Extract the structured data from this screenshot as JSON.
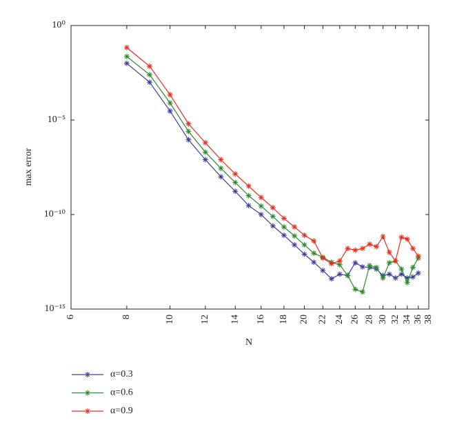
{
  "chart_data": {
    "type": "line",
    "xlabel": "N",
    "ylabel": "max error",
    "xscale": "log",
    "yscale": "log",
    "xlim": [
      6,
      38
    ],
    "xticks": [
      6,
      8,
      10,
      12,
      14,
      16,
      18,
      20,
      22,
      24,
      26,
      28,
      30,
      32,
      34,
      36,
      38
    ],
    "ylim": [
      1e-15,
      1
    ],
    "yticks": [
      {
        "value": 1e-15,
        "label": "10⁻¹⁵"
      },
      {
        "value": 1e-10,
        "label": "10⁻¹⁰"
      },
      {
        "value": 1e-05,
        "label": "10⁻⁵"
      },
      {
        "value": 1,
        "label": "10⁰"
      }
    ],
    "x": [
      8,
      9,
      10,
      11,
      12,
      13,
      14,
      15,
      16,
      17,
      18,
      19,
      20,
      21,
      22,
      23,
      24,
      25,
      26,
      27,
      28,
      29,
      30,
      31,
      32,
      33,
      34,
      35,
      36
    ],
    "series": [
      {
        "name": "α=0.3",
        "color": "#3d3d9f",
        "values": [
          0.01,
          0.001,
          3e-05,
          9e-07,
          8e-08,
          1e-08,
          1.7e-09,
          3e-10,
          1e-10,
          2.5e-11,
          8e-12,
          2.5e-12,
          8e-13,
          3e-13,
          1.1e-13,
          4e-14,
          7e-14,
          6e-14,
          2.8e-13,
          1.7e-13,
          1.6e-13,
          1.3e-13,
          6e-14,
          7e-14,
          4.4e-14,
          7e-14,
          4.4e-14,
          5e-14,
          8e-14
        ]
      },
      {
        "name": "α=0.6",
        "color": "#2b8a2b",
        "values": [
          0.023,
          0.0025,
          8e-05,
          2.5e-06,
          2e-07,
          2.8e-08,
          5e-09,
          1e-09,
          2.8e-10,
          8e-11,
          2.2e-11,
          7.4e-12,
          2.5e-12,
          9e-13,
          5.5e-13,
          3e-13,
          2.2e-13,
          6e-14,
          1.1e-14,
          8e-15,
          2e-13,
          1.6e-13,
          4.4e-14,
          2.8e-13,
          3.5e-13,
          1.3e-13,
          2.5e-14,
          1.6e-13,
          5e-13
        ]
      },
      {
        "name": "α=0.9",
        "color": "#ee2a1a",
        "values": [
          0.068,
          0.007,
          0.00022,
          6.3e-06,
          6.3e-07,
          8e-08,
          1.4e-08,
          3.2e-09,
          8e-10,
          2.3e-10,
          6.3e-11,
          2.2e-11,
          8e-12,
          4e-12,
          5e-13,
          2.5e-13,
          3.5e-13,
          1.6e-12,
          1.3e-12,
          1.6e-12,
          2.7e-12,
          2e-12,
          6.8e-12,
          1e-12,
          3.5e-13,
          6.3e-12,
          5e-12,
          1.6e-12,
          6.3e-13
        ]
      }
    ]
  }
}
